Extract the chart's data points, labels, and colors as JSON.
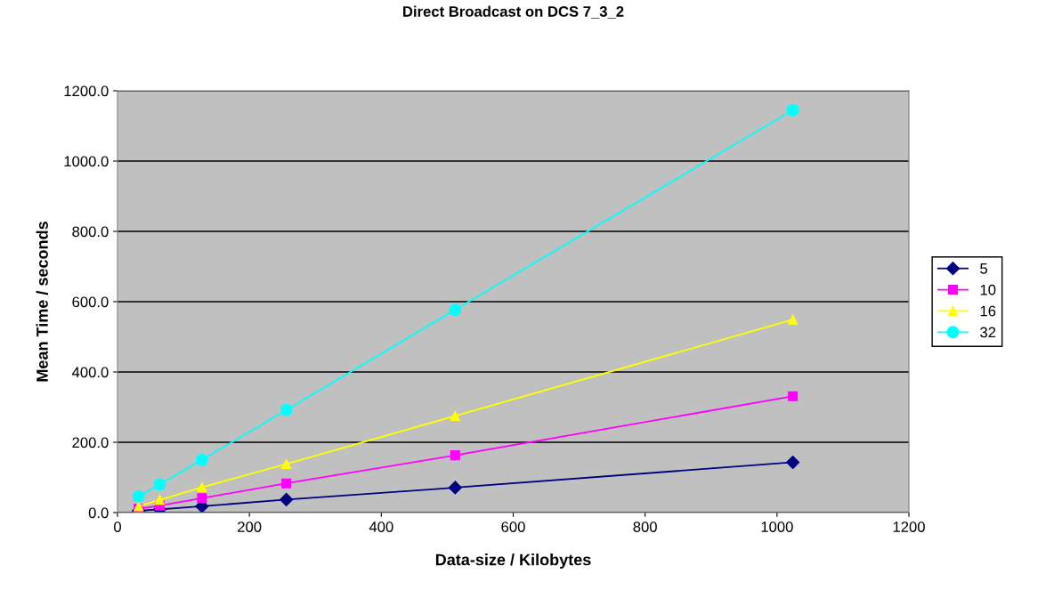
{
  "chart_data": {
    "type": "line",
    "title": "Direct Broadcast on DCS 7_3_2",
    "xlabel": "Data-size / Kilobytes",
    "ylabel": "Mean Time / seconds",
    "x": [
      32,
      64,
      128,
      256,
      512,
      1024
    ],
    "series": [
      {
        "name": "5",
        "color": "#000080",
        "marker": "diamond",
        "values": [
          5,
          9,
          18,
          37,
          71,
          143
        ]
      },
      {
        "name": "10",
        "color": "#ff00ff",
        "marker": "square",
        "values": [
          11,
          20,
          41,
          83,
          163,
          331
        ]
      },
      {
        "name": "16",
        "color": "#ffff00",
        "marker": "triangle",
        "values": [
          18,
          36,
          72,
          138,
          275,
          549
        ]
      },
      {
        "name": "32",
        "color": "#00ffff",
        "marker": "circle",
        "values": [
          46,
          80,
          150,
          292,
          577,
          1145
        ]
      }
    ],
    "xlim": [
      0,
      1200
    ],
    "xticks": [
      0,
      200,
      400,
      600,
      800,
      1000,
      1200
    ],
    "ylim": [
      0,
      1200
    ],
    "yticks": [
      {
        "value": 0,
        "label": "0.0"
      },
      {
        "value": 200,
        "label": "200.0"
      },
      {
        "value": 400,
        "label": "400.0"
      },
      {
        "value": 600,
        "label": "600.0"
      },
      {
        "value": 800,
        "label": "800.0"
      },
      {
        "value": 1000,
        "label": "1000.0"
      },
      {
        "value": 1200,
        "label": "1200.0"
      }
    ],
    "grid": "y",
    "legend": "right",
    "line_style": "solid"
  }
}
